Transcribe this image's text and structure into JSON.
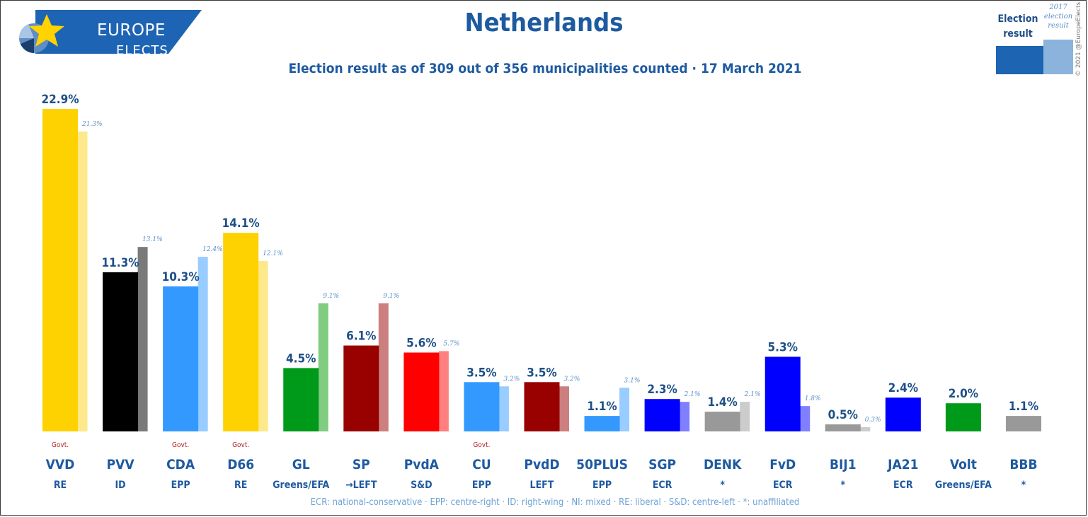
{
  "branding": {
    "logo_line1": "EUROPE",
    "logo_line2": "ELECTS",
    "copyright": "© 2021 @EuropeElects"
  },
  "legend": {
    "current_label": "Election result",
    "previous_label": "2017 election result"
  },
  "colors": {
    "title": "#1e5aa0",
    "brand_blue": "#1e64b4",
    "govt_text": "#b22222",
    "footnote": "#6da3d6"
  },
  "chart_data": {
    "type": "bar",
    "title": "Netherlands",
    "subtitle": "Election result as of 309 out of 356 municipalities counted · 17 March 2021",
    "ylim": [
      0,
      24
    ],
    "grid": false,
    "footnote": "ECR: national-conservative · EPP: centre-right · ID: right-wing · NI: mixed · RE: liberal · S&D: centre-left · *: unaffiliated",
    "parties": [
      {
        "name": "VVD",
        "group": "RE",
        "value": 22.9,
        "value_label": "22.9%",
        "prev": 21.3,
        "prev_label": "21.3%",
        "govt": "Govt.",
        "color": "#fdd200",
        "prev_color": "#fde98c"
      },
      {
        "name": "PVV",
        "group": "ID",
        "value": 11.3,
        "value_label": "11.3%",
        "prev": 13.1,
        "prev_label": "13.1%",
        "govt": "",
        "color": "#000000",
        "prev_color": "#7a7a7a"
      },
      {
        "name": "CDA",
        "group": "EPP",
        "value": 10.3,
        "value_label": "10.3%",
        "prev": 12.4,
        "prev_label": "12.4%",
        "govt": "Govt.",
        "color": "#3399ff",
        "prev_color": "#99ccff"
      },
      {
        "name": "D66",
        "group": "RE",
        "value": 14.1,
        "value_label": "14.1%",
        "prev": 12.1,
        "prev_label": "12.1%",
        "govt": "Govt.",
        "color": "#fdd200",
        "prev_color": "#fde98c"
      },
      {
        "name": "GL",
        "group": "Greens/EFA",
        "value": 4.5,
        "value_label": "4.5%",
        "prev": 9.1,
        "prev_label": "9.1%",
        "govt": "",
        "color": "#009a1a",
        "prev_color": "#80cc80"
      },
      {
        "name": "SP",
        "group": "→LEFT",
        "value": 6.1,
        "value_label": "6.1%",
        "prev": 9.1,
        "prev_label": "9.1%",
        "govt": "",
        "color": "#990000",
        "prev_color": "#cc7f7f"
      },
      {
        "name": "PvdA",
        "group": "S&D",
        "value": 5.6,
        "value_label": "5.6%",
        "prev": 5.7,
        "prev_label": "5.7%",
        "govt": "",
        "color": "#ff0000",
        "prev_color": "#ff7f7f"
      },
      {
        "name": "CU",
        "group": "EPP",
        "value": 3.5,
        "value_label": "3.5%",
        "prev": 3.2,
        "prev_label": "3.2%",
        "govt": "Govt.",
        "color": "#3399ff",
        "prev_color": "#99ccff"
      },
      {
        "name": "PvdD",
        "group": "LEFT",
        "value": 3.5,
        "value_label": "3.5%",
        "prev": 3.2,
        "prev_label": "3.2%",
        "govt": "",
        "color": "#990000",
        "prev_color": "#cc7f7f"
      },
      {
        "name": "50PLUS",
        "group": "EPP",
        "value": 1.1,
        "value_label": "1.1%",
        "prev": 3.1,
        "prev_label": "3.1%",
        "govt": "",
        "color": "#3399ff",
        "prev_color": "#99ccff"
      },
      {
        "name": "SGP",
        "group": "ECR",
        "value": 2.3,
        "value_label": "2.3%",
        "prev": 2.1,
        "prev_label": "2.1%",
        "govt": "",
        "color": "#0000ff",
        "prev_color": "#7f7fff"
      },
      {
        "name": "DENK",
        "group": "*",
        "value": 1.4,
        "value_label": "1.4%",
        "prev": 2.1,
        "prev_label": "2.1%",
        "govt": "",
        "color": "#999999",
        "prev_color": "#cccccc"
      },
      {
        "name": "FvD",
        "group": "ECR",
        "value": 5.3,
        "value_label": "5.3%",
        "prev": 1.8,
        "prev_label": "1.8%",
        "govt": "",
        "color": "#0000ff",
        "prev_color": "#7f7fff"
      },
      {
        "name": "BIJ1",
        "group": "*",
        "value": 0.5,
        "value_label": "0.5%",
        "prev": 0.3,
        "prev_label": "0.3%",
        "govt": "",
        "color": "#999999",
        "prev_color": "#cccccc"
      },
      {
        "name": "JA21",
        "group": "ECR",
        "value": 2.4,
        "value_label": "2.4%",
        "prev": null,
        "prev_label": "",
        "govt": "",
        "color": "#0000ff",
        "prev_color": "#7f7fff"
      },
      {
        "name": "Volt",
        "group": "Greens/EFA",
        "value": 2.0,
        "value_label": "2.0%",
        "prev": null,
        "prev_label": "",
        "govt": "",
        "color": "#009a1a",
        "prev_color": "#80cc80"
      },
      {
        "name": "BBB",
        "group": "*",
        "value": 1.1,
        "value_label": "1.1%",
        "prev": null,
        "prev_label": "",
        "govt": "",
        "color": "#999999",
        "prev_color": "#cccccc"
      }
    ]
  }
}
